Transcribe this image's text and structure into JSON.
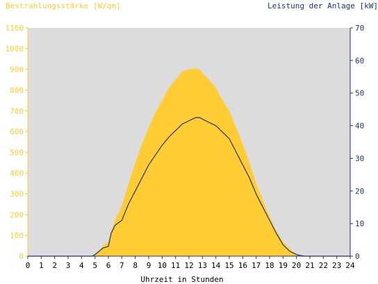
{
  "chart_data": {
    "type": "area",
    "left_axis_label": "Bestrahlungsstärke [W/qm]",
    "right_axis_label": "Leistung der Anlage [kW]",
    "xlabel": "Uhrzeit in Stunden",
    "x_ticks": [
      "0",
      "1",
      "2",
      "3",
      "4",
      "5",
      "6",
      "7",
      "8",
      "9",
      "10",
      "11",
      "12",
      "13",
      "14",
      "15",
      "16",
      "17",
      "18",
      "19",
      "20",
      "21",
      "22",
      "23",
      "24"
    ],
    "left_ticks": [
      "0",
      "100",
      "200",
      "300",
      "400",
      "500",
      "600",
      "700",
      "800",
      "900",
      "1000",
      "1100"
    ],
    "right_ticks": [
      "0",
      "10",
      "20",
      "30",
      "40",
      "50",
      "60",
      "70"
    ],
    "xlim": [
      0,
      24
    ],
    "ylim_left": [
      0,
      1100
    ],
    "ylim_right": [
      0,
      70
    ],
    "grid": false,
    "colors": {
      "irradiance": "#ffcc33",
      "power": "#1f3570",
      "plot_bg": "#dcdcdc"
    },
    "series": [
      {
        "axis": "left",
        "style": "filled-area",
        "x": [
          0,
          4.8,
          5.0,
          5.3,
          5.6,
          6.0,
          6.2,
          6.5,
          7.0,
          7.5,
          8.0,
          8.5,
          9.0,
          9.5,
          10.0,
          10.5,
          11.0,
          11.5,
          12.0,
          12.5,
          12.8,
          13.0,
          13.5,
          14.0,
          14.5,
          15.0,
          15.5,
          16.0,
          16.5,
          17.0,
          17.5,
          18.0,
          18.5,
          19.0,
          19.5,
          20.0,
          20.3,
          20.6,
          21,
          24
        ],
        "values": [
          0,
          0,
          5,
          25,
          50,
          70,
          120,
          175,
          240,
          350,
          450,
          540,
          620,
          690,
          750,
          810,
          850,
          890,
          900,
          905,
          900,
          880,
          850,
          810,
          750,
          700,
          620,
          540,
          450,
          350,
          270,
          190,
          120,
          70,
          35,
          10,
          3,
          0,
          0,
          0
        ]
      },
      {
        "axis": "right",
        "style": "line",
        "x": [
          0,
          4.8,
          5.0,
          5.3,
          5.6,
          6.0,
          6.2,
          6.5,
          7.0,
          7.5,
          8.0,
          8.5,
          9.0,
          9.5,
          10.0,
          10.5,
          11.0,
          11.5,
          12.0,
          12.5,
          12.8,
          13.0,
          13.5,
          14.0,
          14.5,
          15.0,
          15.5,
          16.0,
          16.5,
          17.0,
          17.5,
          18.0,
          18.5,
          19.0,
          19.5,
          20.0,
          20.3,
          20.6,
          21,
          24
        ],
        "values": [
          0,
          0,
          0.5,
          1.5,
          2.5,
          3,
          7,
          9.5,
          11,
          16,
          20,
          24,
          28,
          31,
          34,
          36.5,
          38.5,
          40.5,
          41.5,
          42.5,
          42.5,
          42,
          41,
          40,
          38,
          36,
          32,
          28,
          24,
          19,
          15,
          11,
          7,
          3.5,
          1.5,
          0.5,
          0.2,
          0,
          0,
          0
        ]
      }
    ]
  }
}
